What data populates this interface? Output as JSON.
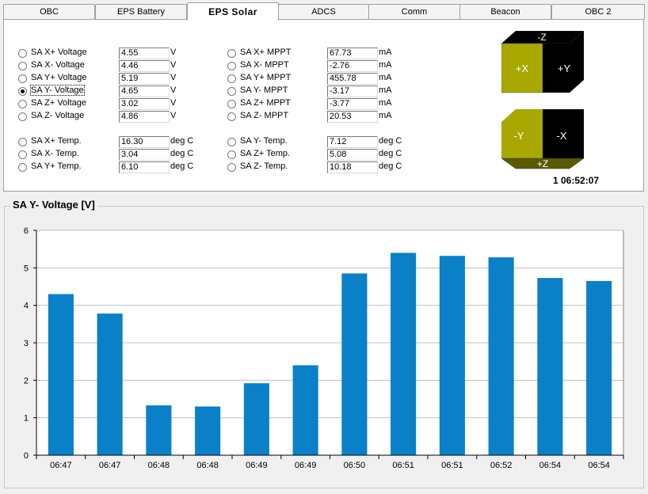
{
  "tabs": [
    "OBC",
    "EPS Battery",
    "EPS  Solar",
    "ADCS",
    "Comm",
    "Beacon",
    "OBC 2"
  ],
  "active_tab": 2,
  "voltages": [
    {
      "label": "SA X+ Voltage",
      "value": "4.55",
      "unit": "V",
      "checked": false
    },
    {
      "label": "SA X- Voltage",
      "value": "4.46",
      "unit": "V",
      "checked": false
    },
    {
      "label": "SA Y+ Voltage",
      "value": "5.19",
      "unit": "V",
      "checked": false
    },
    {
      "label": "SA Y- Voltage",
      "value": "4.65",
      "unit": "V",
      "checked": true
    },
    {
      "label": "SA Z+ Voltage",
      "value": "3.02",
      "unit": "V",
      "checked": false
    },
    {
      "label": "SA Z- Voltage",
      "value": "4.86",
      "unit": "V",
      "checked": false
    }
  ],
  "temps_left": [
    {
      "label": "SA X+ Temp.",
      "value": "16.30",
      "unit": "deg C"
    },
    {
      "label": "SA X- Temp.",
      "value": "3.04",
      "unit": "deg C"
    },
    {
      "label": "SA Y+ Temp.",
      "value": "6.10",
      "unit": "deg C"
    }
  ],
  "mppts": [
    {
      "label": "SA X+ MPPT",
      "value": "67.73",
      "unit": "mA"
    },
    {
      "label": "SA X- MPPT",
      "value": "-2.76",
      "unit": "mA"
    },
    {
      "label": "SA Y+ MPPT",
      "value": "455.78",
      "unit": "mA"
    },
    {
      "label": "SA Y- MPPT",
      "value": "-3.17",
      "unit": "mA"
    },
    {
      "label": "SA Z+ MPPT",
      "value": "-3.77",
      "unit": "mA"
    },
    {
      "label": "SA Z- MPPT",
      "value": "20.53",
      "unit": "mA"
    }
  ],
  "temps_right": [
    {
      "label": "SA Y- Temp.",
      "value": "7.12",
      "unit": "deg C"
    },
    {
      "label": "SA Z+ Temp.",
      "value": "5.08",
      "unit": "deg C"
    },
    {
      "label": "SA Z- Temp.",
      "value": "10.18",
      "unit": "deg C"
    }
  ],
  "cube_top": {
    "top": "-Z",
    "front": "+X",
    "side": "+Y"
  },
  "cube_bottom": {
    "front": "-Y",
    "side": "-X",
    "bottom": "+Z"
  },
  "colors": {
    "lit_face": "#a8a800",
    "dark_face": "#000000",
    "bar": "#0a80c8",
    "lit_bottom": "#5a5a00"
  },
  "clock": "1 06:52:07",
  "chart_group_title": "SA Y- Voltage [V]",
  "chart_data": {
    "type": "bar",
    "title": "",
    "xlabel": "",
    "ylabel": "",
    "categories": [
      "06:47",
      "06:47",
      "06:48",
      "06:48",
      "06:49",
      "06:49",
      "06:50",
      "06:51",
      "06:51",
      "06:52",
      "06:54",
      "06:54"
    ],
    "values": [
      4.3,
      3.78,
      1.33,
      1.3,
      1.92,
      2.4,
      4.85,
      5.4,
      5.32,
      5.28,
      4.73,
      4.65
    ],
    "ylim": [
      0,
      6
    ],
    "yticks": [
      "0",
      "1",
      "2",
      "3",
      "4",
      "5",
      "6"
    ],
    "grid": true,
    "legend": "none"
  }
}
